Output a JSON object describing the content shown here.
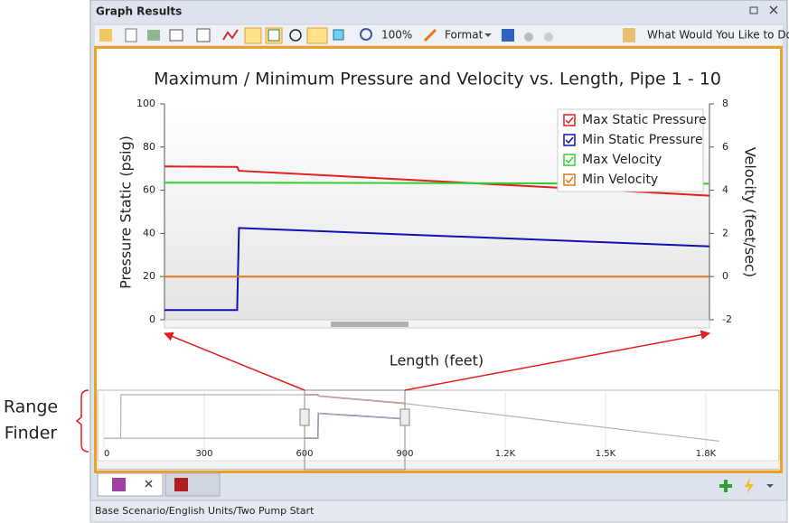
{
  "window": {
    "title": "Graph Results"
  },
  "toolbar": {
    "zoom": "100%",
    "format": "Format",
    "help": "What Would You Like to Do?"
  },
  "annotation": [
    "Range",
    "Finder"
  ],
  "status_bar": "Base Scenario/English Units/Two Pump Start",
  "chart_data": [
    {
      "type": "line",
      "title": "Maximum / Minimum Pressure and Velocity vs. Length, Pipe 1 - 10",
      "xlabel": "Length (feet)",
      "ylabel": "Pressure Static (psig)",
      "y2label": "Velocity (feet/sec)",
      "x": [
        600,
        640,
        641,
        900
      ],
      "xlim": [
        600,
        900
      ],
      "ylim": [
        0,
        100
      ],
      "yticks": [
        0,
        20,
        40,
        60,
        80,
        100
      ],
      "y2lim": [
        -2,
        8
      ],
      "y2ticks": [
        -2,
        0,
        2,
        4,
        6,
        8
      ],
      "legend": "upper right",
      "grid": false,
      "series": [
        {
          "name": "Max Static Pressure",
          "color": "#e02020",
          "values": [
            71,
            70.8,
            69,
            57.5
          ]
        },
        {
          "name": "Min Static Pressure",
          "color": "#1010b0",
          "values": [
            4.5,
            4.5,
            42.5,
            34
          ]
        },
        {
          "name": "Max Velocity",
          "color": "#30d030",
          "axis": "y2",
          "values": [
            4.35,
            4.35,
            4.35,
            4.3
          ]
        },
        {
          "name": "Min Velocity",
          "color": "#e07818",
          "axis": "y2",
          "values": [
            0,
            0,
            0,
            0
          ]
        }
      ]
    },
    {
      "type": "line",
      "xlim": [
        0,
        2019
      ],
      "ylim": [
        -5,
        75
      ],
      "xticks": [
        0,
        300,
        600,
        900,
        {
          "value": 1200,
          "label": "1.2K"
        },
        {
          "value": 1500,
          "label": "1.5K"
        },
        {
          "value": 1800,
          "label": "1.8K"
        }
      ],
      "grid": true,
      "selection": [
        600,
        900
      ],
      "outside_color": "#b4b4b4",
      "series": [
        {
          "color": "#c01818",
          "x": [
            0,
            50,
            51,
            640,
            641,
            900,
            1840
          ],
          "values": [
            4.5,
            4.5,
            71,
            70.8,
            69,
            57.5,
            0
          ]
        },
        {
          "color": "#1010b0",
          "x": [
            0,
            640,
            641,
            900
          ],
          "values": [
            4.5,
            4.5,
            42.5,
            34
          ]
        }
      ]
    }
  ]
}
